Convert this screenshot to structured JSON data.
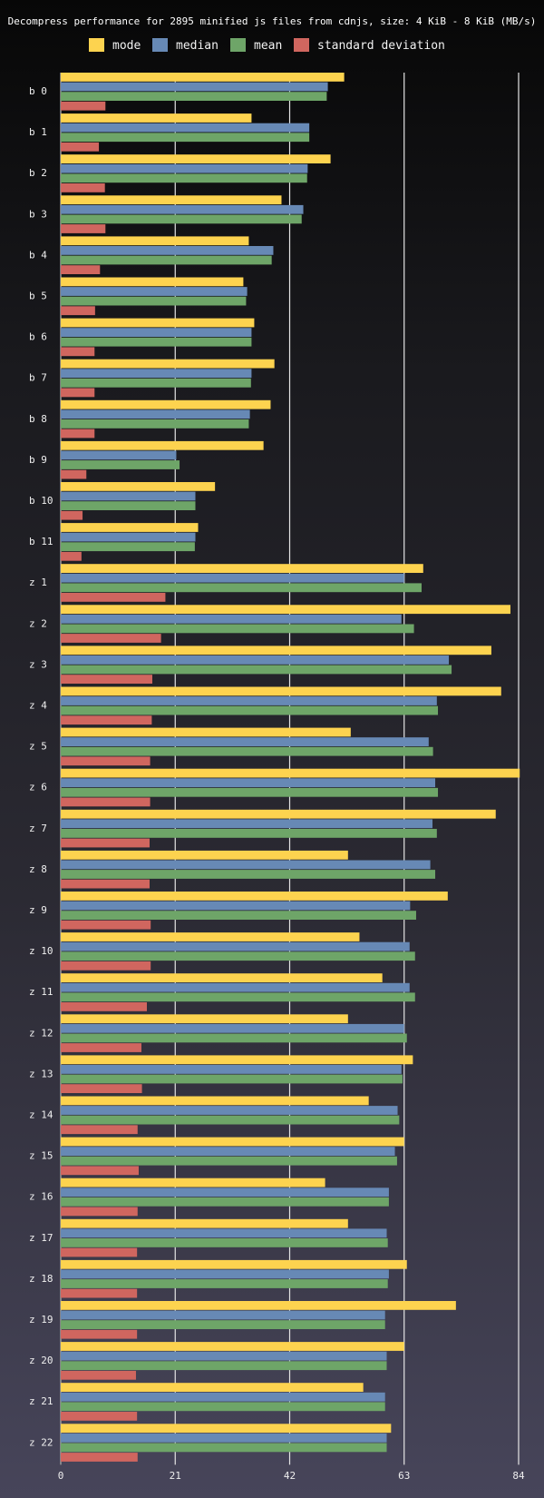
{
  "chart_data": {
    "type": "bar",
    "orientation": "horizontal",
    "title": "Decompress performance for 2895 minified js files from cdnjs, size: 4 KiB - 8 KiB (MB/s)",
    "xlabel": "",
    "ylabel": "",
    "xlim": [
      0,
      84
    ],
    "xticks": [
      0,
      21,
      42,
      63,
      84
    ],
    "grid": true,
    "legend_position": "top",
    "categories": [
      "b  0",
      "b  1",
      "b  2",
      "b  3",
      "b  4",
      "b  5",
      "b  6",
      "b  7",
      "b  8",
      "b  9",
      "b 10",
      "b 11",
      "z  1",
      "z  2",
      "z  3",
      "z  4",
      "z  5",
      "z  6",
      "z  7",
      "z  8",
      "z  9",
      "z 10",
      "z 11",
      "z 12",
      "z 13",
      "z 14",
      "z 15",
      "z 16",
      "z 17",
      "z 18",
      "z 19",
      "z 20",
      "z 21",
      "z 22"
    ],
    "series": [
      {
        "name": "mode",
        "color": "#fdd34f",
        "values": [
          52.0,
          35.0,
          49.5,
          40.5,
          34.5,
          33.5,
          35.5,
          39.2,
          38.5,
          37.2,
          28.3,
          25.2,
          66.5,
          82.5,
          79.0,
          80.8,
          53.2,
          84.2,
          79.8,
          52.7,
          71.0,
          54.8,
          59.0,
          52.7,
          64.6,
          56.5,
          63.0,
          48.5,
          52.7,
          63.5,
          72.5,
          63.0,
          55.5,
          60.6
        ]
      },
      {
        "name": "median",
        "color": "#6789b5",
        "values": [
          49.0,
          45.6,
          45.3,
          44.5,
          39.0,
          34.2,
          35.0,
          35.0,
          34.7,
          21.2,
          24.7,
          24.7,
          63.0,
          62.5,
          71.2,
          69.0,
          67.5,
          68.7,
          68.2,
          67.8,
          64.1,
          64.0,
          64.0,
          63.0,
          62.5,
          61.8,
          61.3,
          60.2,
          59.8,
          60.2,
          59.5,
          59.8,
          59.5,
          59.8
        ]
      },
      {
        "name": "mean",
        "color": "#6ea568",
        "values": [
          48.8,
          45.6,
          45.2,
          44.2,
          38.7,
          34.0,
          35.0,
          34.9,
          34.5,
          21.8,
          24.7,
          24.6,
          66.2,
          64.8,
          71.7,
          69.2,
          68.3,
          69.2,
          69.0,
          68.7,
          65.2,
          65.0,
          65.0,
          63.5,
          62.7,
          62.1,
          61.7,
          60.2,
          60.0,
          60.0,
          59.5,
          59.8,
          59.5,
          59.8
        ]
      },
      {
        "name": "standard deviation",
        "color": "#d0665f",
        "values": [
          8.2,
          7.0,
          8.1,
          8.2,
          7.2,
          6.3,
          6.2,
          6.2,
          6.2,
          4.7,
          4.0,
          3.8,
          19.2,
          18.4,
          16.8,
          16.7,
          16.4,
          16.4,
          16.3,
          16.3,
          16.5,
          16.5,
          15.8,
          14.8,
          14.9,
          14.1,
          14.3,
          14.1,
          14.0,
          14.0,
          14.0,
          13.8,
          14.0,
          14.1
        ]
      }
    ]
  }
}
